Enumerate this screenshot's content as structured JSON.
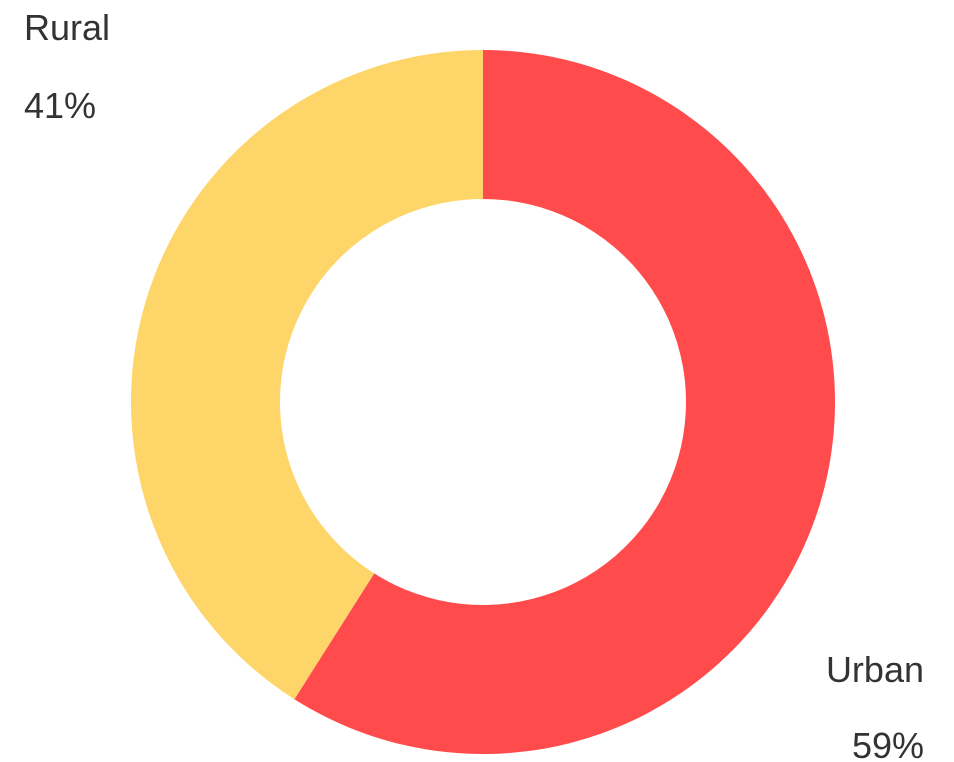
{
  "chart_data": {
    "type": "pie",
    "variant": "donut",
    "title": "",
    "legend": "none",
    "slices": [
      {
        "label": "Urban",
        "value": 59,
        "value_label": "59%",
        "color": "#ff4b4b"
      },
      {
        "label": "Rural",
        "value": 41,
        "value_label": "41%",
        "color": "#fdd569"
      }
    ]
  }
}
